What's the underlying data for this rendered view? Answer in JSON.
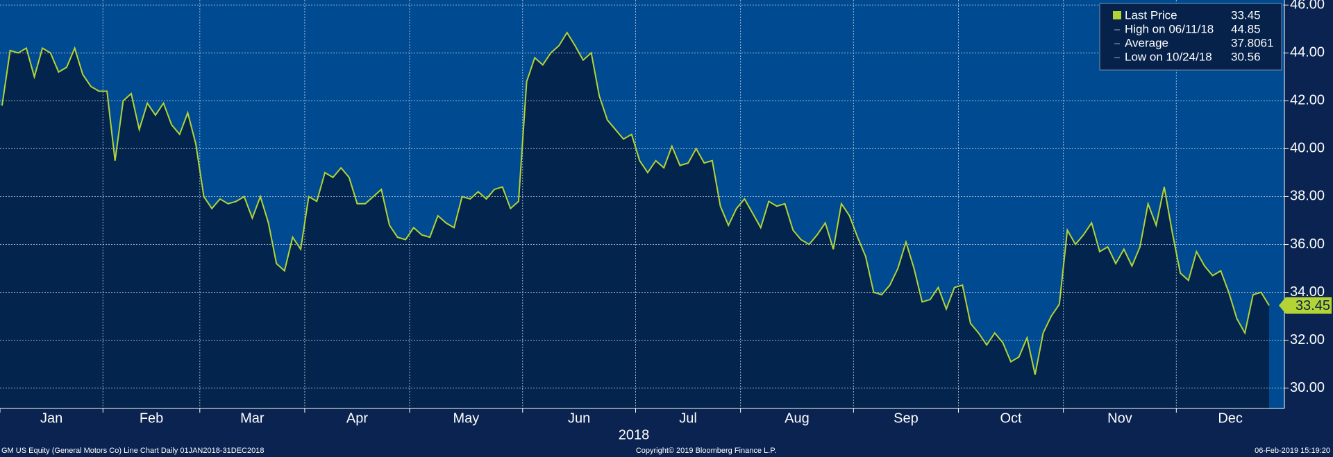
{
  "chart_data": {
    "type": "line",
    "xlabel": "2018",
    "footer_left": "GM US Equity (General Motors Co) Line Chart  Daily 01JAN2018-31DEC2018",
    "footer_center": "Copyright© 2019 Bloomberg Finance L.P.",
    "footer_right": "06-Feb-2019 15:19:20",
    "categories": [
      "Jan",
      null,
      null,
      null,
      null,
      null,
      null,
      null,
      null,
      null,
      null,
      null,
      null,
      "Feb",
      null,
      null,
      null,
      null,
      null,
      null,
      null,
      null,
      null,
      null,
      null,
      "Mar",
      null,
      null,
      null,
      null,
      null,
      null,
      null,
      null,
      null,
      null,
      null,
      null,
      "Apr",
      null,
      null,
      null,
      null,
      null,
      null,
      null,
      null,
      null,
      null,
      null,
      null,
      "May",
      null,
      null,
      null,
      null,
      null,
      null,
      null,
      null,
      null,
      null,
      null,
      null,
      null,
      "Jun",
      null,
      null,
      null,
      null,
      null,
      null,
      null,
      null,
      null,
      null,
      null,
      null,
      null,
      "Jul",
      null,
      null,
      null,
      null,
      null,
      null,
      null,
      null,
      null,
      null,
      null,
      null,
      "Aug",
      null,
      null,
      null,
      null,
      null,
      null,
      null,
      null,
      null,
      null,
      null,
      null,
      null,
      "Sep",
      null,
      null,
      null,
      null,
      null,
      null,
      null,
      null,
      null,
      null,
      null,
      null,
      "Oct",
      null,
      null,
      null,
      null,
      null,
      null,
      null,
      null,
      null,
      null,
      null,
      null,
      "Nov",
      null,
      null,
      null,
      null,
      null,
      null,
      null,
      null,
      null,
      null,
      null,
      null,
      null,
      "Dec",
      null,
      null,
      null,
      null,
      null,
      null,
      null,
      null,
      null,
      null,
      null
    ],
    "series": [
      {
        "name": "Last Price",
        "color": "#b4d334",
        "values": [
          41.8,
          44.1,
          44.0,
          44.2,
          43.0,
          44.2,
          44.0,
          43.2,
          43.4,
          44.2,
          43.1,
          42.6,
          42.4,
          42.4,
          39.5,
          42.0,
          42.3,
          40.8,
          41.9,
          41.4,
          41.9,
          41.0,
          40.6,
          41.5,
          40.2,
          38.0,
          37.5,
          37.9,
          37.7,
          37.8,
          38.0,
          37.1,
          38.0,
          36.9,
          35.2,
          34.9,
          36.3,
          35.8,
          38.0,
          37.8,
          39.0,
          38.8,
          39.2,
          38.8,
          37.7,
          37.7,
          38.0,
          38.3,
          36.8,
          36.3,
          36.2,
          36.7,
          36.4,
          36.3,
          37.2,
          36.9,
          36.7,
          38.0,
          37.9,
          38.2,
          37.9,
          38.3,
          38.4,
          37.5,
          37.8,
          42.8,
          43.8,
          43.5,
          44.0,
          44.3,
          44.85,
          44.3,
          43.7,
          44.0,
          42.2,
          41.2,
          40.8,
          40.4,
          40.6,
          39.5,
          39.0,
          39.5,
          39.2,
          40.1,
          39.3,
          39.4,
          40.0,
          39.4,
          39.5,
          37.6,
          36.8,
          37.5,
          37.9,
          37.3,
          36.7,
          37.8,
          37.6,
          37.7,
          36.6,
          36.2,
          36.0,
          36.4,
          36.9,
          35.8,
          37.7,
          37.2,
          36.3,
          35.5,
          34.0,
          33.9,
          34.3,
          35.0,
          36.1,
          35.0,
          33.6,
          33.7,
          34.2,
          33.3,
          34.2,
          34.3,
          32.7,
          32.3,
          31.8,
          32.3,
          31.9,
          31.1,
          31.3,
          32.1,
          30.56,
          32.3,
          33.0,
          33.5,
          36.6,
          36.0,
          36.4,
          36.9,
          35.7,
          35.9,
          35.2,
          35.8,
          35.1,
          35.9,
          37.7,
          36.8,
          38.4,
          36.5,
          34.8,
          34.5,
          35.7,
          35.1,
          34.7,
          34.9,
          34.0,
          32.9,
          32.3,
          33.9,
          34.0,
          33.45
        ]
      }
    ],
    "stats": [
      {
        "label": "High on 06/11/18",
        "value": 44.85
      },
      {
        "label": "Average",
        "value": 37.8061
      },
      {
        "label": "Low on 10/24/18",
        "value": 30.56
      }
    ],
    "ylim": [
      29.15,
      46.21
    ],
    "yticks": [
      {
        "value": 30,
        "label": "30.00"
      },
      {
        "value": 32,
        "label": "32.00"
      },
      {
        "value": 34,
        "label": "34.00"
      },
      {
        "value": 36,
        "label": "36.00"
      },
      {
        "value": 38,
        "label": "38.00"
      },
      {
        "value": 40,
        "label": "40.00"
      },
      {
        "value": 42,
        "label": "42.00"
      },
      {
        "value": 44,
        "label": "44.00"
      },
      {
        "value": 46,
        "label": "46.00"
      }
    ],
    "grid": true
  }
}
